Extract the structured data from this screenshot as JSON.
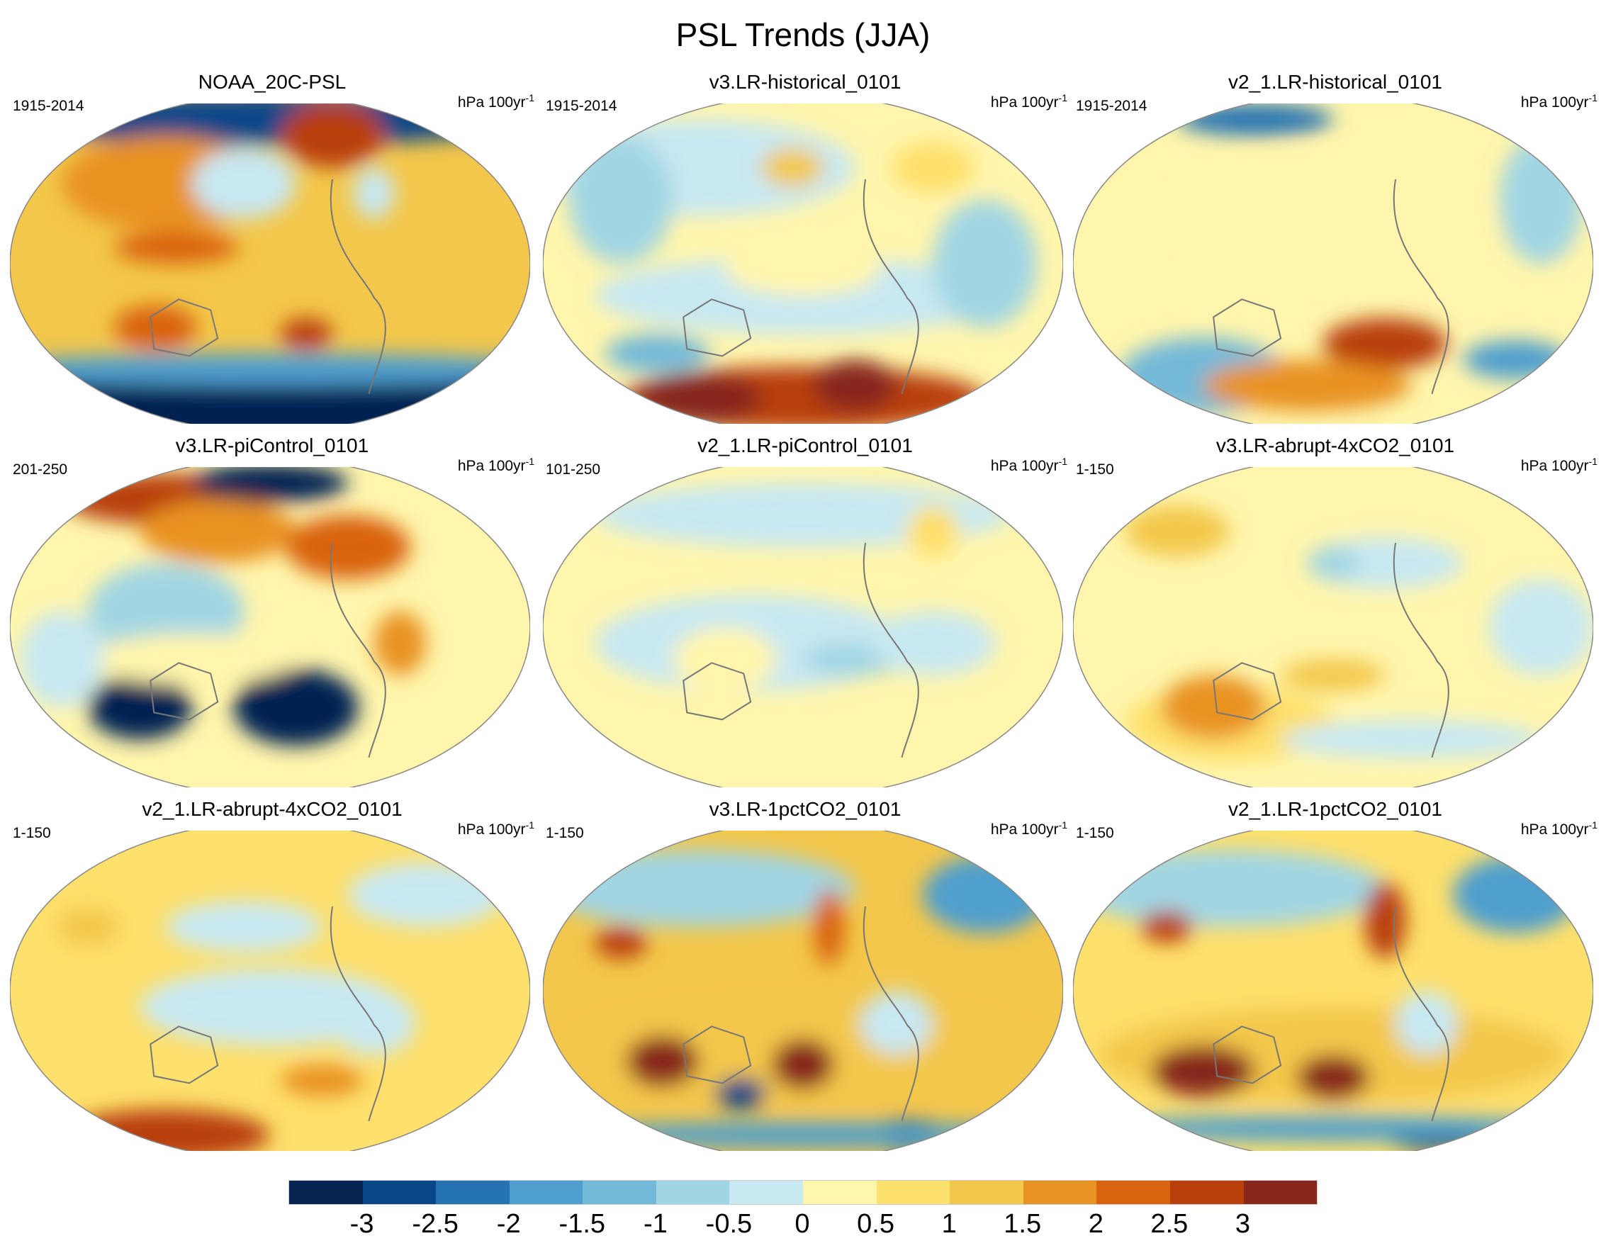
{
  "title": "PSL Trends (JJA)",
  "units_base": "hPa 100yr",
  "units_exp": "-1",
  "panels": [
    {
      "title": "NOAA_20C-PSL",
      "period": "1915-2014"
    },
    {
      "title": "v3.LR-historical_0101",
      "period": "1915-2014"
    },
    {
      "title": "v2_1.LR-historical_0101",
      "period": "1915-2014"
    },
    {
      "title": "v3.LR-piControl_0101",
      "period": "201-250"
    },
    {
      "title": "v2_1.LR-piControl_0101",
      "period": "101-250"
    },
    {
      "title": "v3.LR-abrupt-4xCO2_0101",
      "period": "1-150"
    },
    {
      "title": "v2_1.LR-abrupt-4xCO2_0101",
      "period": "1-150"
    },
    {
      "title": "v3.LR-1pctCO2_0101",
      "period": "1-150"
    },
    {
      "title": "v2_1.LR-1pctCO2_0101",
      "period": "1-150"
    }
  ],
  "colorbar": {
    "labels": [
      "-3",
      "-2.5",
      "-2",
      "-1.5",
      "-1",
      "-0.5",
      "0",
      "0.5",
      "1",
      "1.5",
      "2",
      "2.5",
      "3"
    ],
    "colors": [
      "#062452",
      "#0a4789",
      "#2673b3",
      "#4f9fce",
      "#73b9d8",
      "#a1d5e3",
      "#c8e8f2",
      "#fff5ac",
      "#fee06c",
      "#f3c74b",
      "#e89224",
      "#d9640f",
      "#b9400a",
      "#87281b"
    ]
  }
}
